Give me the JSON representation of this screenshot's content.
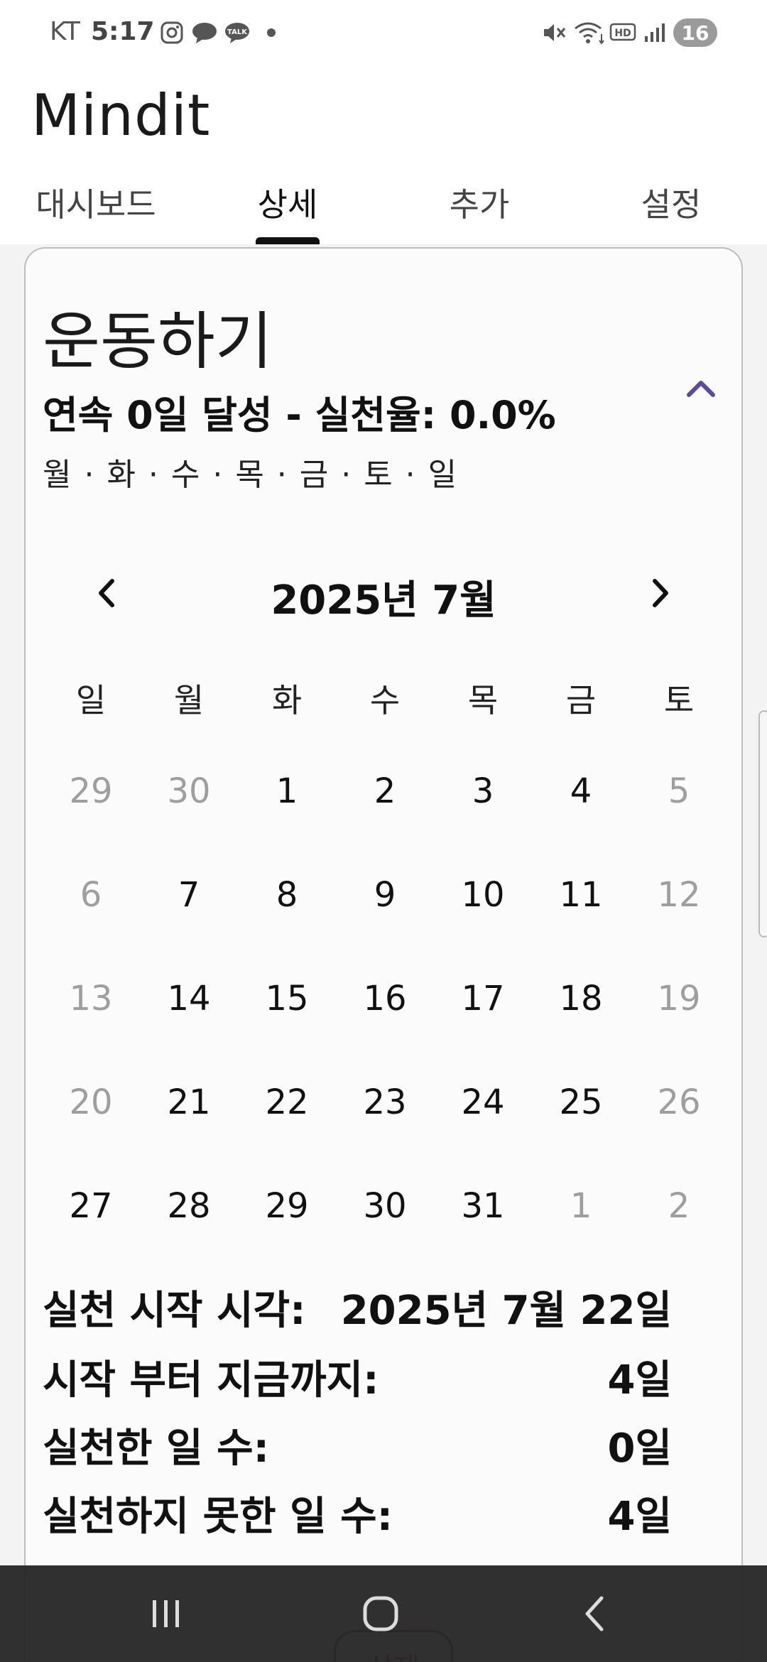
{
  "status_bar": {
    "carrier": "KT",
    "time": "5:17",
    "battery": "16",
    "icons": [
      "instagram-icon",
      "threads-icon",
      "kakaotalk-icon",
      "dot-icon",
      "mute-icon",
      "wifi-icon",
      "hd-voice-icon",
      "signal-icon",
      "battery-icon"
    ]
  },
  "app": {
    "title": "Mindit"
  },
  "tabs": [
    {
      "label": "대시보드",
      "active": false
    },
    {
      "label": "상세",
      "active": true
    },
    {
      "label": "추가",
      "active": false
    },
    {
      "label": "설정",
      "active": false
    }
  ],
  "habit": {
    "name": "운동하기",
    "summary": "연속 0일 달성 - 실천율: 0.0%",
    "days": "월 · 화 · 수 · 목 · 금 · 토 · 일"
  },
  "calendar": {
    "title": "2025년 7월",
    "weekdays": [
      "일",
      "월",
      "화",
      "수",
      "목",
      "금",
      "토"
    ],
    "weeks": [
      [
        {
          "d": "29",
          "m": true
        },
        {
          "d": "30",
          "m": true
        },
        {
          "d": "1",
          "m": false
        },
        {
          "d": "2",
          "m": false
        },
        {
          "d": "3",
          "m": false
        },
        {
          "d": "4",
          "m": false
        },
        {
          "d": "5",
          "m": true
        }
      ],
      [
        {
          "d": "6",
          "m": true
        },
        {
          "d": "7",
          "m": false
        },
        {
          "d": "8",
          "m": false
        },
        {
          "d": "9",
          "m": false
        },
        {
          "d": "10",
          "m": false
        },
        {
          "d": "11",
          "m": false
        },
        {
          "d": "12",
          "m": true
        }
      ],
      [
        {
          "d": "13",
          "m": true
        },
        {
          "d": "14",
          "m": false
        },
        {
          "d": "15",
          "m": false
        },
        {
          "d": "16",
          "m": false
        },
        {
          "d": "17",
          "m": false
        },
        {
          "d": "18",
          "m": false
        },
        {
          "d": "19",
          "m": true
        }
      ],
      [
        {
          "d": "20",
          "m": true
        },
        {
          "d": "21",
          "m": false
        },
        {
          "d": "22",
          "m": false
        },
        {
          "d": "23",
          "m": false
        },
        {
          "d": "24",
          "m": false
        },
        {
          "d": "25",
          "m": false
        },
        {
          "d": "26",
          "m": true
        }
      ],
      [
        {
          "d": "27",
          "m": false
        },
        {
          "d": "28",
          "m": false
        },
        {
          "d": "29",
          "m": false
        },
        {
          "d": "30",
          "m": false
        },
        {
          "d": "31",
          "m": false
        },
        {
          "d": "1",
          "m": true
        },
        {
          "d": "2",
          "m": true
        }
      ]
    ]
  },
  "stats": [
    {
      "label": "실천 시작 시각:",
      "value": "2025년 7월 22일"
    },
    {
      "label": "시작 부터 지금까지:",
      "value": "4일"
    },
    {
      "label": "실천한 일 수:",
      "value": "0일"
    },
    {
      "label": "실천하지 못한 일 수:",
      "value": "4일"
    }
  ],
  "delete_button": {
    "label": "삭제"
  },
  "colors": {
    "accent": "#5b4a9e",
    "muted_day": "#9e9e9e",
    "nav_bar": "#282828",
    "delete": "#7a2a2a"
  }
}
